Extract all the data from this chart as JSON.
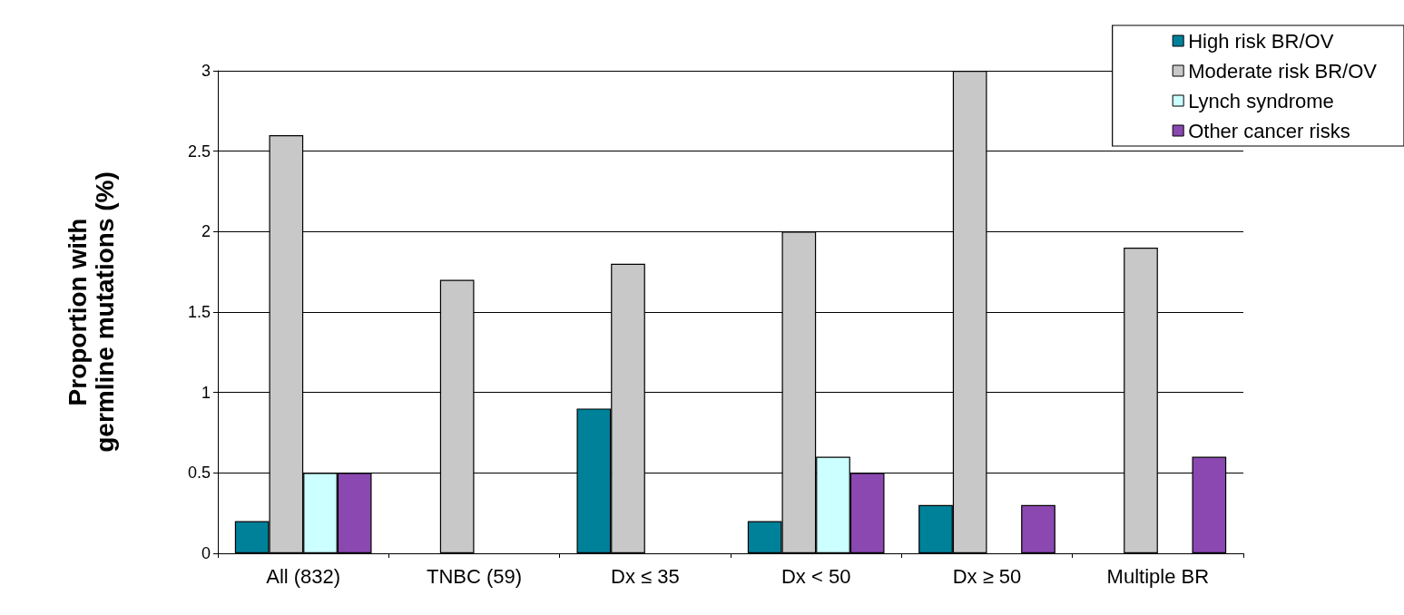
{
  "chart_data": {
    "type": "bar",
    "ylabel": "Proportion with\ngermline mutations (%)",
    "categories": [
      "All (832)",
      "TNBC (59)",
      "Dx ≤ 35",
      "Dx < 50",
      "Dx ≥ 50",
      "Multiple BR"
    ],
    "series": [
      {
        "name": "High risk BR/OV",
        "color": "#00819a",
        "values": [
          0.2,
          null,
          0.9,
          0.2,
          0.3,
          null
        ]
      },
      {
        "name": "Moderate risk BR/OV",
        "color": "#c8c8c8",
        "values": [
          2.6,
          1.7,
          1.8,
          2.0,
          3.0,
          1.9
        ]
      },
      {
        "name": "Lynch syndrome",
        "color": "#ccffff",
        "values": [
          0.5,
          null,
          null,
          0.6,
          null,
          null
        ]
      },
      {
        "name": "Other cancer risks",
        "color": "#8a48b0",
        "values": [
          0.5,
          null,
          null,
          0.5,
          0.3,
          0.6
        ]
      }
    ],
    "ylim": [
      0,
      3
    ],
    "yticks": [
      0,
      0.5,
      1,
      1.5,
      2,
      2.5,
      3
    ],
    "grid": "y",
    "legend": "top right"
  }
}
